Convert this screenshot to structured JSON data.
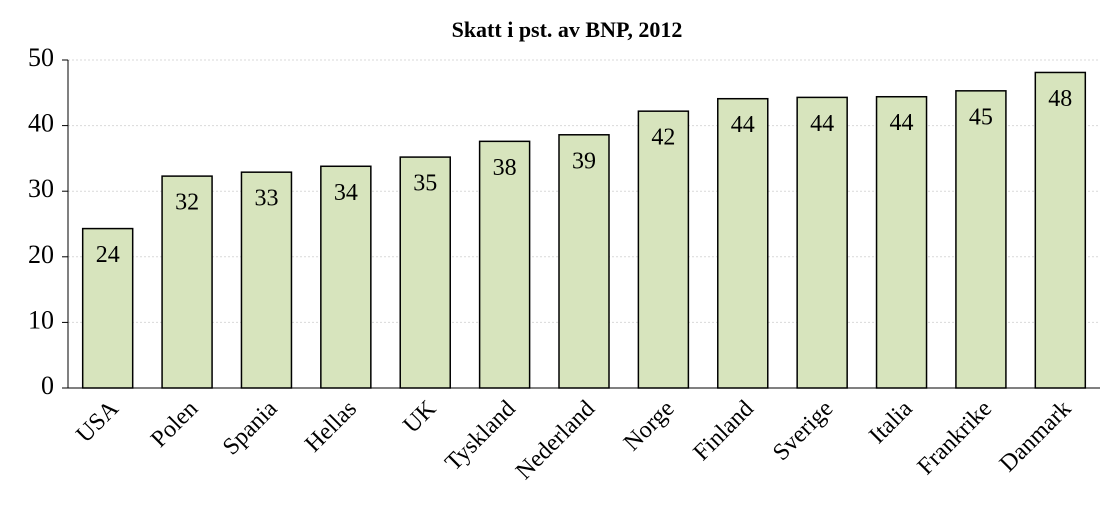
{
  "chart_data": {
    "type": "bar",
    "title": "Skatt i pst. av BNP, 2012",
    "categories": [
      "USA",
      "Polen",
      "Spania",
      "Hellas",
      "UK",
      "Tyskland",
      "Nederland",
      "Norge",
      "Finland",
      "Sverige",
      "Italia",
      "Frankrike",
      "Danmark"
    ],
    "values": [
      24.3,
      32.3,
      32.9,
      33.8,
      35.2,
      37.6,
      38.6,
      42.2,
      44.1,
      44.3,
      44.4,
      45.3,
      48.1
    ],
    "value_labels": [
      "24",
      "32",
      "33",
      "34",
      "35",
      "38",
      "39",
      "42",
      "44",
      "44",
      "44",
      "45",
      "48"
    ],
    "color": "#d7e4bd",
    "ylim": [
      0,
      50
    ],
    "yticks": [
      0,
      10,
      20,
      30,
      40,
      50
    ],
    "grid": true
  }
}
